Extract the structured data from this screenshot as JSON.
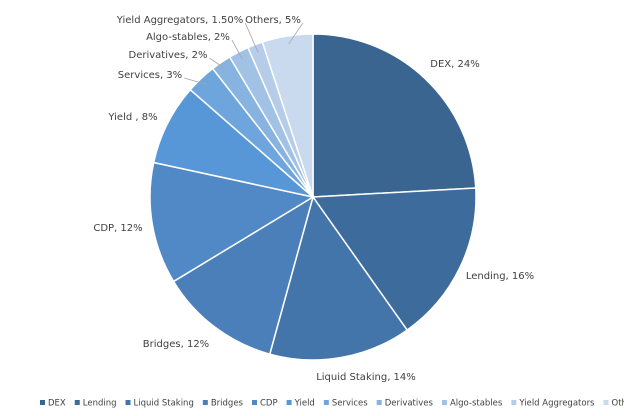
{
  "chart_data": {
    "type": "pie",
    "categories": [
      "DEX",
      "Lending",
      "Liquid Staking",
      "Bridges",
      "CDP",
      "Yield",
      "Services",
      "Derivatives",
      "Algo-stables",
      "Yield Aggregators",
      "Others"
    ],
    "values": [
      24,
      16,
      14,
      12,
      12,
      8,
      3,
      2,
      2,
      1.5,
      5
    ],
    "value_labels": [
      "DEX, 24%",
      "Lending, 16%",
      "Liquid Staking, 14%",
      "Bridges, 12%",
      "CDP, 12%",
      "Yield , 8%",
      "Services, 3%",
      "Derivatives, 2%",
      "Algo-stables, 2%",
      "Yield Aggregators, 1.50%",
      "Others, 5%"
    ],
    "colors": [
      "#3a6591",
      "#3d6c9c",
      "#4375ab",
      "#4a7fb9",
      "#5089c6",
      "#5797d7",
      "#6ea5dc",
      "#87b3e0",
      "#a1c1e5",
      "#b5cde9",
      "#c9d9ee"
    ],
    "legend": "bottom"
  }
}
